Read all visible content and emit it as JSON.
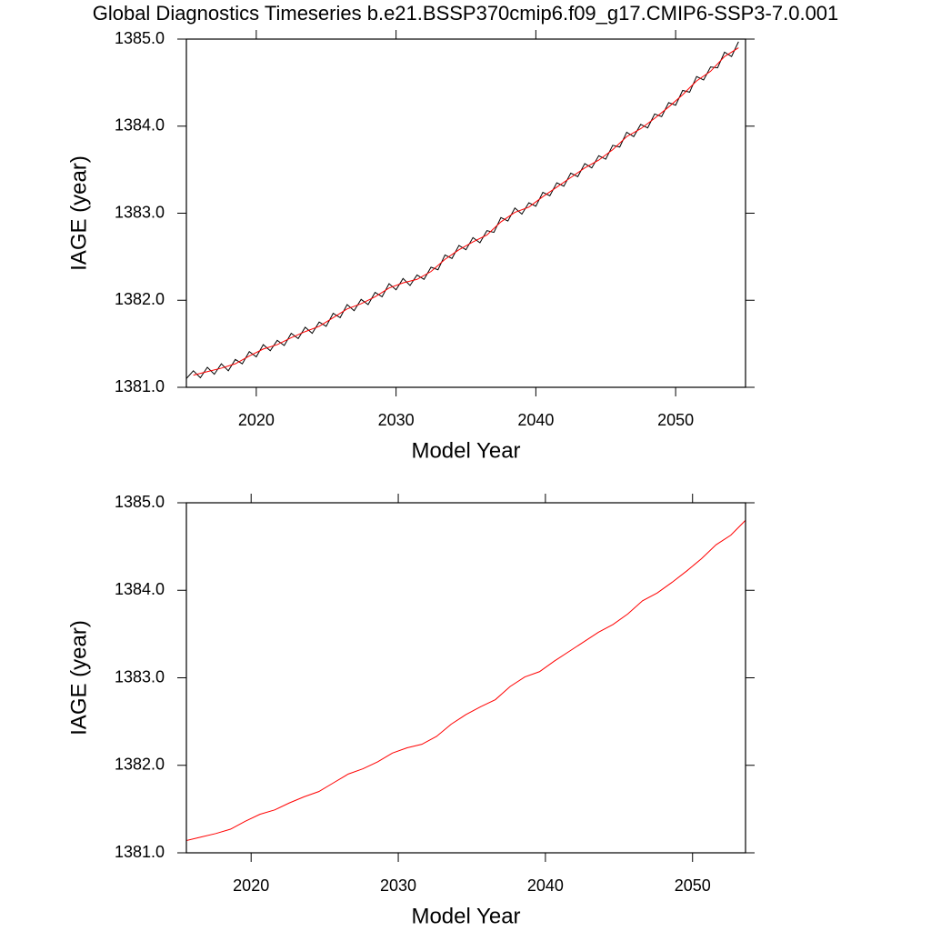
{
  "chart_data": [
    {
      "type": "line",
      "title": "Global Diagnostics Timeseries b.e21.BSSP370cmip6.f09_g17.CMIP6-SSP3-7.0.001",
      "xlabel": "Model Year",
      "ylabel": "IAGE (year)",
      "xlim": [
        2015,
        2055
      ],
      "ylim": [
        1381,
        1385
      ],
      "xticks": [
        2020,
        2030,
        2040,
        2050
      ],
      "yticks": [
        {
          "value": 1381,
          "label": "1381.0"
        },
        {
          "value": 1382,
          "label": "1382.0"
        },
        {
          "value": 1383,
          "label": "1383.0"
        },
        {
          "value": 1384,
          "label": "1384.0"
        },
        {
          "value": 1385,
          "label": "1385.0"
        }
      ],
      "series": [
        {
          "color": "#000000",
          "x": [
            2015,
            2015.5,
            2016,
            2016.5,
            2017,
            2017.5,
            2018,
            2018.5,
            2019,
            2019.5,
            2020,
            2020.5,
            2021,
            2021.5,
            2022,
            2022.5,
            2023,
            2023.5,
            2024,
            2024.5,
            2025,
            2025.5,
            2026,
            2026.5,
            2027,
            2027.5,
            2028,
            2028.5,
            2029,
            2029.5,
            2030,
            2030.5,
            2031,
            2031.5,
            2032,
            2032.5,
            2033,
            2033.5,
            2034,
            2034.5,
            2035,
            2035.5,
            2036,
            2036.5,
            2037,
            2037.5,
            2038,
            2038.5,
            2039,
            2039.5,
            2040,
            2040.5,
            2041,
            2041.5,
            2042,
            2042.5,
            2043,
            2043.5,
            2044,
            2044.5,
            2045,
            2045.5,
            2046,
            2046.5,
            2047,
            2047.5,
            2048,
            2048.5,
            2049,
            2049.5,
            2050,
            2050.5,
            2051,
            2051.5,
            2052,
            2052.5,
            2053,
            2053.5,
            2054,
            2054.5
          ],
          "values": [
            1381.1,
            1381.19,
            1381.11,
            1381.23,
            1381.15,
            1381.27,
            1381.19,
            1381.32,
            1381.27,
            1381.41,
            1381.35,
            1381.49,
            1381.42,
            1381.54,
            1381.48,
            1381.62,
            1381.56,
            1381.69,
            1381.62,
            1381.75,
            1381.7,
            1381.85,
            1381.8,
            1381.95,
            1381.88,
            1382.01,
            1381.95,
            1382.09,
            1382.04,
            1382.19,
            1382.12,
            1382.25,
            1382.17,
            1382.29,
            1382.24,
            1382.38,
            1382.35,
            1382.52,
            1382.48,
            1382.63,
            1382.58,
            1382.72,
            1382.66,
            1382.8,
            1382.78,
            1382.95,
            1382.91,
            1383.06,
            1382.99,
            1383.12,
            1383.08,
            1383.24,
            1383.2,
            1383.35,
            1383.31,
            1383.46,
            1383.42,
            1383.57,
            1383.52,
            1383.66,
            1383.62,
            1383.78,
            1383.76,
            1383.93,
            1383.88,
            1384.02,
            1383.98,
            1384.14,
            1384.11,
            1384.27,
            1384.24,
            1384.41,
            1384.39,
            1384.57,
            1384.53,
            1384.68,
            1384.67,
            1384.85,
            1384.8,
            1384.97
          ]
        },
        {
          "color": "#ff0000",
          "x": [
            2015.5,
            2016.5,
            2017.5,
            2018.5,
            2019.5,
            2020.5,
            2021.5,
            2022.5,
            2023.5,
            2024.5,
            2025.5,
            2026.5,
            2027.5,
            2028.5,
            2029.5,
            2030.5,
            2031.5,
            2032.5,
            2033.5,
            2034.5,
            2035.5,
            2036.5,
            2037.5,
            2038.5,
            2039.5,
            2040.5,
            2041.5,
            2042.5,
            2043.5,
            2044.5,
            2045.5,
            2046.5,
            2047.5,
            2048.5,
            2049.5,
            2050.5,
            2051.5,
            2052.5,
            2053.5,
            2054.5
          ],
          "values": [
            1381.14,
            1381.18,
            1381.22,
            1381.27,
            1381.36,
            1381.44,
            1381.49,
            1381.57,
            1381.64,
            1381.7,
            1381.8,
            1381.9,
            1381.96,
            1382.04,
            1382.14,
            1382.2,
            1382.24,
            1382.33,
            1382.47,
            1382.58,
            1382.67,
            1382.75,
            1382.9,
            1383.01,
            1383.07,
            1383.19,
            1383.3,
            1383.41,
            1383.52,
            1383.61,
            1383.73,
            1383.88,
            1383.97,
            1384.09,
            1384.22,
            1384.36,
            1384.52,
            1384.63,
            1384.8,
            1384.9
          ]
        }
      ]
    },
    {
      "type": "line",
      "xlabel": "Model Year",
      "ylabel": "IAGE (year)",
      "xlim": [
        2015.6,
        2053.6
      ],
      "ylim": [
        1381,
        1385
      ],
      "xticks": [
        2020,
        2030,
        2040,
        2050
      ],
      "yticks": [
        {
          "value": 1381,
          "label": "1381.0"
        },
        {
          "value": 1382,
          "label": "1382.0"
        },
        {
          "value": 1383,
          "label": "1383.0"
        },
        {
          "value": 1384,
          "label": "1384.0"
        },
        {
          "value": 1385,
          "label": "1385.0"
        }
      ],
      "series": [
        {
          "color": "#ff0000",
          "x": [
            2015.6,
            2016.6,
            2017.6,
            2018.6,
            2019.6,
            2020.6,
            2021.6,
            2022.6,
            2023.6,
            2024.6,
            2025.6,
            2026.6,
            2027.6,
            2028.6,
            2029.6,
            2030.6,
            2031.6,
            2032.6,
            2033.6,
            2034.6,
            2035.6,
            2036.6,
            2037.6,
            2038.6,
            2039.6,
            2040.6,
            2041.6,
            2042.6,
            2043.6,
            2044.6,
            2045.6,
            2046.6,
            2047.6,
            2048.6,
            2049.6,
            2050.6,
            2051.6,
            2052.6,
            2053.6
          ],
          "values": [
            1381.14,
            1381.18,
            1381.22,
            1381.27,
            1381.36,
            1381.44,
            1381.49,
            1381.57,
            1381.64,
            1381.7,
            1381.8,
            1381.9,
            1381.96,
            1382.04,
            1382.14,
            1382.2,
            1382.24,
            1382.33,
            1382.47,
            1382.58,
            1382.67,
            1382.75,
            1382.9,
            1383.01,
            1383.07,
            1383.19,
            1383.3,
            1383.41,
            1383.52,
            1383.61,
            1383.73,
            1383.88,
            1383.97,
            1384.09,
            1384.22,
            1384.36,
            1384.52,
            1384.63,
            1384.8
          ]
        }
      ]
    }
  ]
}
